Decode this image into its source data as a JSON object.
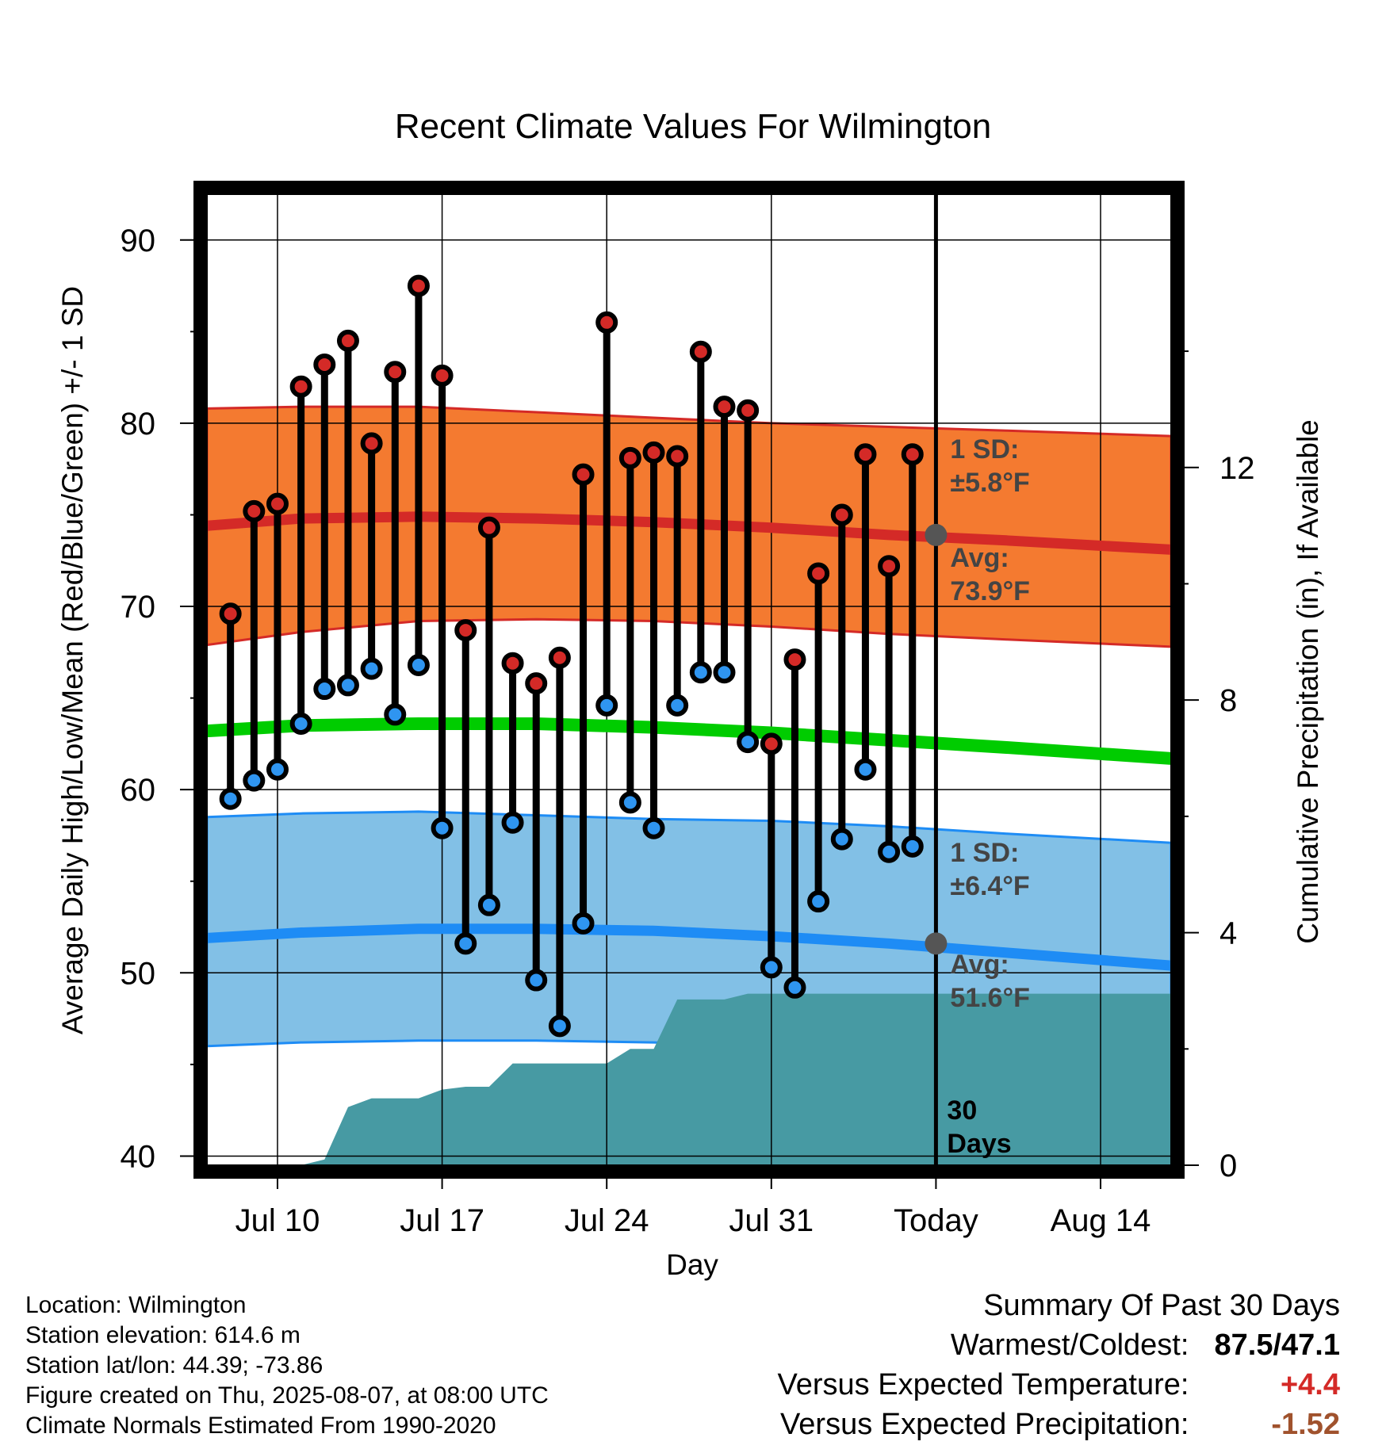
{
  "chart_data": {
    "type": "line",
    "title": "Recent Climate Values For Wilmington",
    "xlabel": "Day",
    "ylabel": "Average Daily High/Low/Mean (Red/Blue/Green) +/- 1 SD",
    "y2label": "Cumulative Precipitation (in), If Available",
    "x_range": [
      "2025-07-07",
      "2025-08-17"
    ],
    "ylim": [
      39.5,
      92.5
    ],
    "y2lim": [
      0,
      16.7
    ],
    "yticks": [
      "90",
      "80",
      "70",
      "60",
      "50",
      "40"
    ],
    "y2ticks": [
      "0",
      "4",
      "8",
      "12"
    ],
    "xticks": [
      "Jul 10",
      "Jul 17",
      "Jul 24",
      "Jul 31",
      "Today",
      "Aug 14"
    ],
    "xtick_dates": [
      "2025-07-10",
      "2025-07-17",
      "2025-07-24",
      "2025-07-31",
      "2025-08-07",
      "2025-08-14"
    ],
    "today": "2025-08-07",
    "days": [
      "2025-07-08",
      "2025-07-09",
      "2025-07-10",
      "2025-07-11",
      "2025-07-12",
      "2025-07-13",
      "2025-07-14",
      "2025-07-15",
      "2025-07-16",
      "2025-07-17",
      "2025-07-18",
      "2025-07-19",
      "2025-07-20",
      "2025-07-21",
      "2025-07-22",
      "2025-07-23",
      "2025-07-24",
      "2025-07-25",
      "2025-07-26",
      "2025-07-27",
      "2025-07-28",
      "2025-07-29",
      "2025-07-30",
      "2025-07-31",
      "2025-08-01",
      "2025-08-02",
      "2025-08-03",
      "2025-08-04",
      "2025-08-05",
      "2025-08-06"
    ],
    "highs": [
      69.6,
      75.2,
      75.6,
      82.0,
      83.2,
      84.5,
      78.9,
      82.8,
      87.5,
      82.6,
      68.7,
      74.3,
      66.9,
      65.8,
      67.2,
      77.2,
      85.5,
      78.1,
      78.4,
      78.2,
      83.9,
      80.9,
      80.7,
      62.5,
      67.1,
      71.8,
      75.0,
      78.3,
      72.2,
      78.3
    ],
    "lows": [
      59.5,
      60.5,
      61.1,
      63.6,
      65.5,
      65.7,
      66.6,
      64.1,
      66.8,
      57.9,
      51.6,
      53.7,
      58.2,
      49.6,
      47.1,
      52.7,
      64.6,
      59.3,
      57.9,
      64.6,
      66.4,
      66.4,
      62.6,
      50.3,
      49.2,
      53.9,
      57.3,
      61.1,
      56.6,
      56.9
    ],
    "normal_days": [
      "2025-07-07",
      "2025-07-11",
      "2025-07-16",
      "2025-07-21",
      "2025-07-26",
      "2025-07-31",
      "2025-08-05",
      "2025-08-10",
      "2025-08-17"
    ],
    "normal_high": [
      74.4,
      74.8,
      74.9,
      74.8,
      74.6,
      74.3,
      73.9,
      73.6,
      73.1
    ],
    "normal_low": [
      51.9,
      52.2,
      52.4,
      52.4,
      52.3,
      52.0,
      51.6,
      51.1,
      50.4
    ],
    "normal_mean": [
      63.2,
      63.5,
      63.6,
      63.6,
      63.4,
      63.1,
      62.7,
      62.3,
      61.7
    ],
    "high_sd_upper": [
      80.8,
      80.9,
      80.9,
      80.6,
      80.3,
      80.0,
      79.8,
      79.6,
      79.3
    ],
    "high_sd_lower": [
      67.9,
      68.6,
      69.2,
      69.3,
      69.2,
      68.9,
      68.5,
      68.2,
      67.8
    ],
    "low_sd_upper": [
      58.5,
      58.7,
      58.8,
      58.6,
      58.4,
      58.3,
      58.0,
      57.6,
      57.1
    ],
    "low_sd_lower": [
      46.0,
      46.2,
      46.3,
      46.3,
      46.2,
      46.0,
      45.6,
      45.2,
      44.6
    ],
    "precip_days": [
      "2025-07-07",
      "2025-07-11",
      "2025-07-12",
      "2025-07-13",
      "2025-07-14",
      "2025-07-16",
      "2025-07-17",
      "2025-07-18",
      "2025-07-19",
      "2025-07-20",
      "2025-07-21",
      "2025-07-24",
      "2025-07-25",
      "2025-07-26",
      "2025-07-27",
      "2025-07-29",
      "2025-07-30",
      "2025-08-17"
    ],
    "precip_cum": [
      0,
      0,
      0.1,
      1.0,
      1.15,
      1.15,
      1.3,
      1.35,
      1.35,
      1.75,
      1.75,
      1.75,
      2.0,
      2.0,
      2.85,
      2.85,
      2.95,
      2.95
    ],
    "annotations": {
      "high_sd_label": "1 SD:",
      "high_sd_value": "±5.8°F",
      "high_avg_label": "Avg:",
      "high_avg_value": "73.9°F",
      "low_sd_label": "1 SD:",
      "low_sd_value": "±6.4°F",
      "low_avg_label": "Avg:",
      "low_avg_value": "51.6°F",
      "days_count": "30",
      "days_word": "Days"
    },
    "colors": {
      "high_band": "#F47A30",
      "high_line": "#D42A27",
      "low_band": "#82C0E6",
      "low_line": "#1E8CF5",
      "mean_line": "#00CC00",
      "precip": "#479AA3",
      "high_dot": "#D42A27",
      "low_dot": "#2F95F0"
    }
  },
  "footer": {
    "location": "Location: Wilmington",
    "elevation": "Station elevation: 614.6 m",
    "latlon": "Station lat/lon: 44.39; -73.86",
    "created": "Figure created on Thu, 2025-08-07, at 08:00 UTC",
    "normals": "Climate Normals Estimated From 1990-2020"
  },
  "summary": {
    "title": "Summary Of Past 30 Days",
    "warm_cold_label": "Warmest/Coldest:",
    "warm_cold_value": "87.5/47.1",
    "temp_label": "Versus Expected Temperature:",
    "temp_value": "+4.4",
    "temp_color": "#D42A27",
    "precip_label": "Versus Expected Precipitation:",
    "precip_value": "-1.52",
    "precip_color": "#A0522D"
  }
}
